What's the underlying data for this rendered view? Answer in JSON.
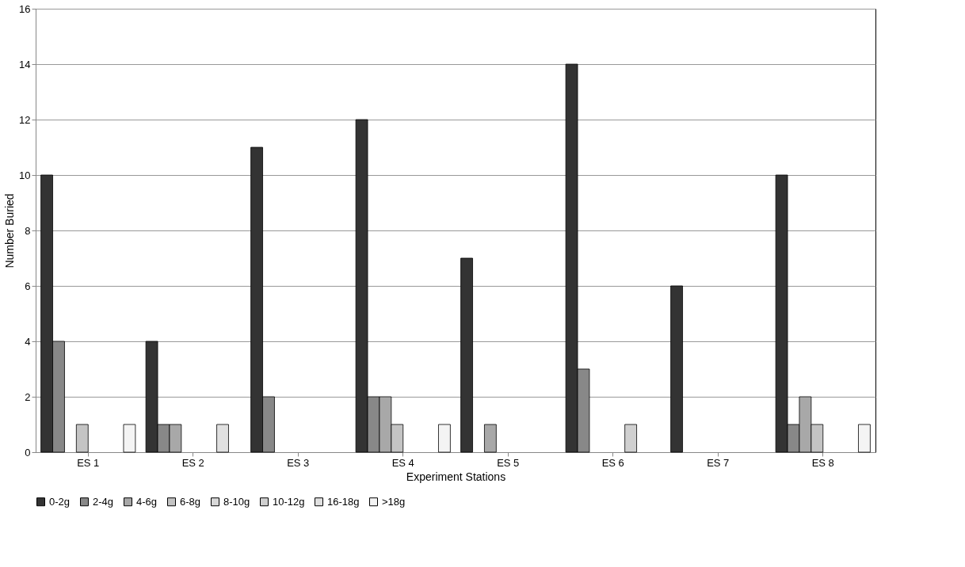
{
  "chart_data": {
    "type": "bar",
    "xlabel": "Experiment Stations",
    "ylabel": "Number Buried",
    "categories": [
      "ES 1",
      "ES 2",
      "ES 3",
      "ES 4",
      "ES 5",
      "ES 6",
      "ES 7",
      "ES 8"
    ],
    "series": [
      {
        "name": "0-2g",
        "color": "#333333",
        "values": [
          10,
          4,
          11,
          12,
          7,
          14,
          6,
          10
        ]
      },
      {
        "name": "2-4g",
        "color": "#888888",
        "values": [
          4,
          1,
          2,
          2,
          null,
          3,
          null,
          1
        ]
      },
      {
        "name": "4-6g",
        "color": "#a8a8a8",
        "values": [
          null,
          1,
          null,
          2,
          1,
          null,
          null,
          2
        ]
      },
      {
        "name": "6-8g",
        "color": "#c4c4c4",
        "values": [
          1,
          null,
          null,
          1,
          null,
          null,
          null,
          1
        ]
      },
      {
        "name": "8-10g",
        "color": "#d8d8d8",
        "values": [
          null,
          null,
          null,
          null,
          null,
          null,
          null,
          null
        ]
      },
      {
        "name": "10-12g",
        "color": "#d0d0d0",
        "values": [
          null,
          null,
          null,
          null,
          null,
          1,
          null,
          null
        ]
      },
      {
        "name": "16-18g",
        "color": "#e0e0e0",
        "values": [
          null,
          1,
          null,
          null,
          null,
          null,
          null,
          null
        ]
      },
      {
        "name": ">18g",
        "color": "#f4f4f4",
        "values": [
          1,
          null,
          null,
          1,
          null,
          null,
          null,
          1
        ]
      }
    ],
    "ylim": [
      0,
      16
    ],
    "yticks": [
      0,
      2,
      4,
      6,
      8,
      10,
      12,
      14,
      16
    ],
    "grid": "y",
    "legend": "bottom"
  }
}
